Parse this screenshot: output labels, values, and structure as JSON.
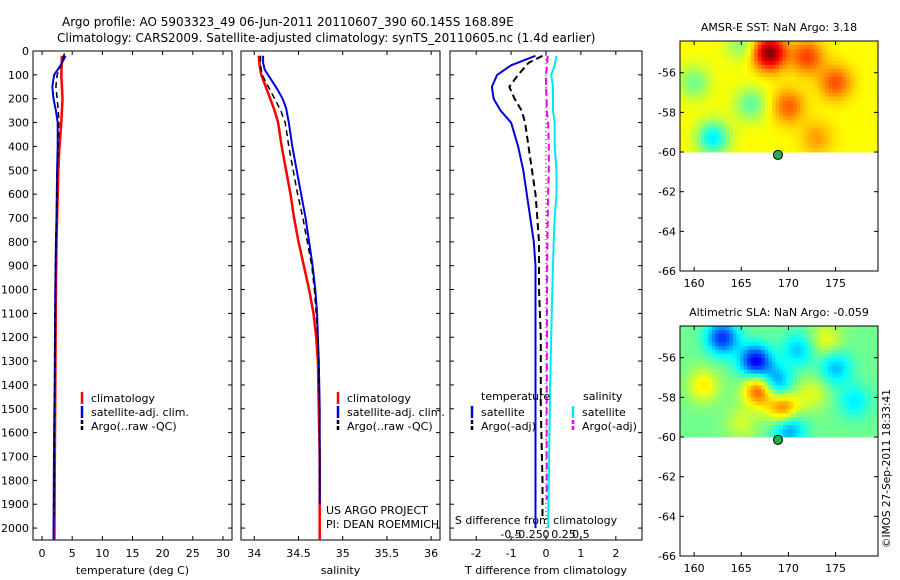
{
  "header": {
    "line1": "Argo profile: AO 5903323_49 06-Jun-2011 20110607_390 60.145S 168.89E",
    "line2": "Climatology: CARS2009. Satellite-adjusted climatology: synTS_20110605.nc (1.4d earlier)"
  },
  "side_note": "©IMOS 27-Sep-2011 18:33:41",
  "colors": {
    "climatology": "#ff0000",
    "satellite": "#0000dd",
    "argo": "#000000",
    "sat_salinity_diff": "#00e8f0",
    "argo_salinity_diff": "#ee00ee"
  },
  "chart_data": [
    {
      "type": "line",
      "panel": "temperature",
      "xlabel": "temperature (deg C)",
      "xticks": [
        0,
        5,
        10,
        15,
        20,
        25,
        30
      ],
      "xlim": [
        -1.5,
        31.5
      ],
      "ylim": [
        0,
        2050
      ],
      "yticks": [
        0,
        100,
        200,
        300,
        400,
        500,
        600,
        700,
        800,
        900,
        1000,
        1100,
        1200,
        1300,
        1400,
        1500,
        1600,
        1700,
        1800,
        1900,
        2000
      ],
      "legend": [
        "climatology",
        "satellite-adj. clim.",
        "Argo(..raw -QC)"
      ],
      "series": [
        {
          "name": "climatology",
          "color": "#ff0000",
          "width": 2.5,
          "dash": "",
          "points": [
            [
              3.3,
              20
            ],
            [
              3.2,
              100
            ],
            [
              3.4,
              200
            ],
            [
              3.2,
              300
            ],
            [
              2.9,
              400
            ],
            [
              2.7,
              500
            ],
            [
              2.6,
              600
            ],
            [
              2.5,
              700
            ],
            [
              2.4,
              800
            ],
            [
              2.35,
              900
            ],
            [
              2.3,
              1000
            ],
            [
              2.25,
              1200
            ],
            [
              2.2,
              1400
            ],
            [
              2.15,
              1600
            ],
            [
              2.1,
              1800
            ],
            [
              2.05,
              2050
            ]
          ]
        },
        {
          "name": "satellite-adj. clim.",
          "color": "#0000dd",
          "width": 2,
          "dash": "",
          "points": [
            [
              3.9,
              20
            ],
            [
              3.1,
              60
            ],
            [
              2.0,
              100
            ],
            [
              1.7,
              150
            ],
            [
              1.9,
              200
            ],
            [
              2.3,
              250
            ],
            [
              2.6,
              300
            ],
            [
              2.6,
              400
            ],
            [
              2.5,
              500
            ],
            [
              2.45,
              600
            ],
            [
              2.4,
              700
            ],
            [
              2.3,
              800
            ],
            [
              2.25,
              900
            ],
            [
              2.2,
              1000
            ],
            [
              2.15,
              1200
            ],
            [
              2.1,
              1400
            ],
            [
              2.0,
              1600
            ],
            [
              1.95,
              1800
            ],
            [
              1.9,
              2050
            ]
          ]
        },
        {
          "name": "Argo(..raw -QC)",
          "color": "#000000",
          "width": 1.5,
          "dash": "6,4",
          "points": [
            [
              3.7,
              10
            ],
            [
              3.3,
              50
            ],
            [
              2.5,
              100
            ],
            [
              2.3,
              150
            ],
            [
              2.5,
              200
            ],
            [
              2.7,
              250
            ],
            [
              2.8,
              300
            ],
            [
              2.7,
              400
            ],
            [
              2.55,
              500
            ],
            [
              2.45,
              600
            ],
            [
              2.4,
              700
            ],
            [
              2.3,
              800
            ],
            [
              2.25,
              900
            ],
            [
              2.2,
              1000
            ],
            [
              2.1,
              1200
            ],
            [
              2.1,
              1400
            ],
            [
              2.05,
              1600
            ],
            [
              2.0,
              1800
            ],
            [
              2.0,
              1950
            ]
          ]
        }
      ]
    },
    {
      "type": "line",
      "panel": "salinity",
      "xlabel": "salinity",
      "xticks": [
        34,
        34.5,
        35,
        35.5,
        36
      ],
      "xlim": [
        33.85,
        36.1
      ],
      "ylim": [
        0,
        2050
      ],
      "legend": [
        "climatology",
        "satellite-adj. clim.",
        "Argo(..raw -QC)"
      ],
      "annotation": [
        "US ARGO PROJECT",
        "PI: DEAN ROEMMICH"
      ],
      "series": [
        {
          "name": "climatology",
          "color": "#ff0000",
          "width": 2.5,
          "dash": "",
          "points": [
            [
              34.05,
              20
            ],
            [
              34.06,
              60
            ],
            [
              34.08,
              100
            ],
            [
              34.13,
              150
            ],
            [
              34.18,
              200
            ],
            [
              34.23,
              250
            ],
            [
              34.27,
              300
            ],
            [
              34.31,
              400
            ],
            [
              34.36,
              500
            ],
            [
              34.41,
              600
            ],
            [
              34.45,
              700
            ],
            [
              34.5,
              800
            ],
            [
              34.56,
              900
            ],
            [
              34.62,
              1000
            ],
            [
              34.67,
              1100
            ],
            [
              34.7,
              1200
            ],
            [
              34.72,
              1300
            ],
            [
              34.73,
              1500
            ],
            [
              34.74,
              1700
            ],
            [
              34.74,
              1900
            ],
            [
              34.74,
              2050
            ]
          ]
        },
        {
          "name": "satellite-adj. clim.",
          "color": "#0000dd",
          "width": 2,
          "dash": "",
          "points": [
            [
              34.1,
              20
            ],
            [
              34.1,
              50
            ],
            [
              34.12,
              80
            ],
            [
              34.19,
              120
            ],
            [
              34.26,
              160
            ],
            [
              34.32,
              200
            ],
            [
              34.36,
              240
            ],
            [
              34.39,
              300
            ],
            [
              34.43,
              400
            ],
            [
              34.48,
              500
            ],
            [
              34.53,
              600
            ],
            [
              34.58,
              700
            ],
            [
              34.62,
              800
            ],
            [
              34.66,
              900
            ],
            [
              34.69,
              1000
            ],
            [
              34.71,
              1100
            ],
            [
              34.72,
              1200
            ],
            [
              34.73,
              1300
            ],
            [
              34.74,
              1500
            ],
            [
              34.74,
              1700
            ],
            [
              34.74,
              1900
            ]
          ]
        },
        {
          "name": "Argo(..raw -QC)",
          "color": "#000000",
          "width": 1.5,
          "dash": "6,4",
          "points": [
            [
              34.07,
              20
            ],
            [
              34.07,
              60
            ],
            [
              34.09,
              100
            ],
            [
              34.16,
              150
            ],
            [
              34.23,
              200
            ],
            [
              34.3,
              250
            ],
            [
              34.35,
              300
            ],
            [
              34.39,
              400
            ],
            [
              34.44,
              500
            ],
            [
              34.49,
              600
            ],
            [
              34.55,
              700
            ],
            [
              34.6,
              800
            ],
            [
              34.65,
              900
            ],
            [
              34.68,
              1000
            ],
            [
              34.7,
              1100
            ],
            [
              34.72,
              1200
            ],
            [
              34.73,
              1300
            ],
            [
              34.74,
              1500
            ],
            [
              34.74,
              1700
            ],
            [
              34.74,
              1880
            ]
          ]
        }
      ]
    },
    {
      "type": "line",
      "panel": "difference",
      "xlabel": "T difference from climatology",
      "xticks": [
        -2,
        -1,
        0,
        1,
        2
      ],
      "xlim": [
        -2.75,
        2.75
      ],
      "top_xlabel": "S difference from climatology",
      "top_xtick_labels": [
        "-0.5",
        "-0.25",
        "0",
        "0.25",
        "0.5"
      ],
      "ylim": [
        0,
        2050
      ],
      "legend": {
        "temperature": {
          "title": "temperature",
          "items": [
            "satellite",
            "Argo(-adj)"
          ]
        },
        "salinity": {
          "title": "salinity",
          "items": [
            "satellite",
            "Argo(-adj)"
          ]
        }
      },
      "series": [
        {
          "name": "temperature satellite",
          "color": "#0000dd",
          "width": 2,
          "dash": "",
          "points": [
            [
              -0.3,
              20
            ],
            [
              -1.0,
              60
            ],
            [
              -1.4,
              100
            ],
            [
              -1.55,
              150
            ],
            [
              -1.5,
              200
            ],
            [
              -1.3,
              250
            ],
            [
              -1.0,
              300
            ],
            [
              -0.8,
              400
            ],
            [
              -0.65,
              500
            ],
            [
              -0.55,
              600
            ],
            [
              -0.45,
              700
            ],
            [
              -0.35,
              800
            ],
            [
              -0.3,
              900
            ],
            [
              -0.3,
              1000
            ],
            [
              -0.3,
              1200
            ],
            [
              -0.3,
              1500
            ],
            [
              -0.3,
              1800
            ],
            [
              -0.3,
              2000
            ]
          ]
        },
        {
          "name": "temperature Argo",
          "color": "#000000",
          "width": 2,
          "dash": "7,4",
          "points": [
            [
              -0.1,
              20
            ],
            [
              -0.5,
              50
            ],
            [
              -0.8,
              100
            ],
            [
              -1.05,
              150
            ],
            [
              -0.9,
              200
            ],
            [
              -0.7,
              250
            ],
            [
              -0.6,
              300
            ],
            [
              -0.5,
              400
            ],
            [
              -0.4,
              500
            ],
            [
              -0.3,
              600
            ],
            [
              -0.25,
              700
            ],
            [
              -0.2,
              800
            ],
            [
              -0.2,
              1000
            ],
            [
              -0.15,
              1200
            ],
            [
              -0.15,
              1500
            ],
            [
              -0.1,
              1800
            ],
            [
              -0.1,
              1950
            ]
          ]
        },
        {
          "name": "salinity satellite",
          "color": "#00e8f0",
          "width": 2,
          "dash": "",
          "points": [
            [
              0.3,
              20
            ],
            [
              0.25,
              60
            ],
            [
              0.15,
              100
            ],
            [
              0.2,
              150
            ],
            [
              0.2,
              200
            ],
            [
              0.2,
              250
            ],
            [
              0.25,
              300
            ],
            [
              0.25,
              400
            ],
            [
              0.3,
              500
            ],
            [
              0.3,
              600
            ],
            [
              0.25,
              700
            ],
            [
              0.22,
              800
            ],
            [
              0.2,
              900
            ],
            [
              0.18,
              1000
            ],
            [
              0.15,
              1200
            ],
            [
              0.12,
              1400
            ],
            [
              0.1,
              1600
            ],
            [
              0.08,
              1800
            ],
            [
              0.06,
              2000
            ]
          ]
        },
        {
          "name": "salinity Argo",
          "color": "#ee00ee",
          "width": 2,
          "dash": "7,4",
          "points": [
            [
              0.05,
              20
            ],
            [
              0.03,
              60
            ],
            [
              0.0,
              100
            ],
            [
              0.0,
              150
            ],
            [
              0.02,
              200
            ],
            [
              0.02,
              250
            ],
            [
              0.06,
              300
            ],
            [
              0.08,
              400
            ],
            [
              0.08,
              500
            ],
            [
              0.06,
              600
            ],
            [
              0.05,
              700
            ],
            [
              0.04,
              800
            ],
            [
              0.03,
              1000
            ],
            [
              0.03,
              1200
            ],
            [
              0.02,
              1500
            ],
            [
              0.02,
              1800
            ],
            [
              0.02,
              1880
            ]
          ]
        }
      ]
    },
    {
      "type": "heatmap",
      "panel": "sst_map",
      "title": "AMSR-E SST: NaN Argo: 3.18",
      "xticks": [
        160,
        165,
        170,
        175
      ],
      "yticks": [
        -56,
        -58,
        -60,
        -62,
        -64,
        -66
      ],
      "xlim": [
        158.5,
        179.5
      ],
      "ylim": [
        -66,
        -54.4
      ],
      "data_lat_range": [
        -60,
        -54.4
      ],
      "float_position": {
        "lon": 168.89,
        "lat": -60.145
      },
      "mean": 0.4,
      "blobs": [
        {
          "lon": 168,
          "lat": -55,
          "amp": 1.2
        },
        {
          "lon": 172,
          "lat": -55.2,
          "amp": 0.6
        },
        {
          "lon": 162,
          "lat": -59.3,
          "amp": -0.85
        },
        {
          "lon": 160,
          "lat": -56.5,
          "amp": -0.45
        },
        {
          "lon": 166,
          "lat": -57.6,
          "amp": -0.5
        },
        {
          "lon": 175,
          "lat": -56.5,
          "amp": 0.55
        },
        {
          "lon": 173,
          "lat": -59.3,
          "amp": 0.3
        },
        {
          "lon": 170,
          "lat": -57.7,
          "amp": 0.5
        },
        {
          "lon": 165,
          "lat": -54.6,
          "amp": -0.35
        }
      ]
    },
    {
      "type": "heatmap",
      "panel": "sla_map",
      "title": "Altimetric SLA: NaN Argo: -0.059",
      "xticks": [
        160,
        165,
        170,
        175
      ],
      "yticks": [
        -56,
        -58,
        -60,
        -62,
        -64,
        -66
      ],
      "xlim": [
        158.5,
        179.5
      ],
      "ylim": [
        -66,
        -54.4
      ],
      "data_lat_range": [
        -60,
        -54.4
      ],
      "float_position": {
        "lon": 168.89,
        "lat": -60.145
      },
      "mean": -0.05,
      "blobs": [
        {
          "lon": 167,
          "lat": -57.6,
          "amp": 1.2
        },
        {
          "lon": 169.5,
          "lat": -58.6,
          "amp": 1.0
        },
        {
          "lon": 166.5,
          "lat": -56.2,
          "amp": -1.2
        },
        {
          "lon": 163,
          "lat": -55,
          "amp": -1.0
        },
        {
          "lon": 168.5,
          "lat": -57.3,
          "amp": -0.9
        },
        {
          "lon": 170,
          "lat": -59.5,
          "amp": -0.8
        },
        {
          "lon": 171,
          "lat": -55.6,
          "amp": -0.5
        },
        {
          "lon": 175,
          "lat": -56.5,
          "amp": -0.55
        },
        {
          "lon": 177,
          "lat": -58.2,
          "amp": -0.4
        },
        {
          "lon": 161,
          "lat": -57.4,
          "amp": 0.5
        },
        {
          "lon": 174,
          "lat": -55.1,
          "amp": 0.4
        },
        {
          "lon": 172.5,
          "lat": -57.8,
          "amp": 0.35
        },
        {
          "lon": 165,
          "lat": -59.3,
          "amp": 0.3
        }
      ]
    }
  ]
}
